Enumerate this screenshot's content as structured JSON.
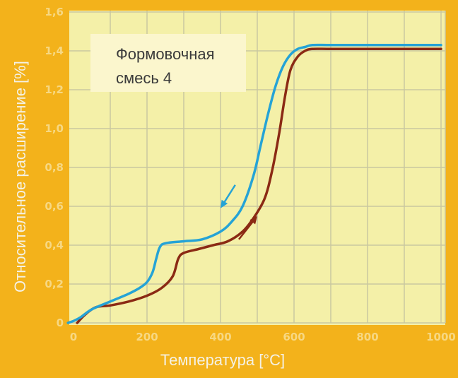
{
  "chart_data": {
    "type": "line",
    "title": "",
    "xlabel": "Температура [°C]",
    "ylabel": "Относительное расширение [%]",
    "xlim": [
      0,
      1000
    ],
    "ylim": [
      0,
      1.6
    ],
    "x_ticks": [
      "0",
      "200",
      "400",
      "600",
      "800",
      "1000"
    ],
    "y_ticks": [
      "0",
      "0,2",
      "0,4",
      "0,6",
      "0,8",
      "1,0",
      "1,2",
      "1,4",
      "1,6"
    ],
    "grid": true,
    "annotation": {
      "line1": "Формовочная",
      "line2": "смесь  4"
    },
    "colors": {
      "plot_background": "#f4f0a8",
      "grid": "#c9c8a0",
      "outer_background": "#f3b21b",
      "annotation_box": "#fbf6cd"
    },
    "series": [
      {
        "color": "#25a3d6",
        "direction": "cooling",
        "x": [
          -15,
          0,
          20,
          50,
          100,
          150,
          180,
          200,
          215,
          225,
          235,
          250,
          300,
          350,
          400,
          430,
          460,
          490,
          510,
          530,
          550,
          570,
          590,
          610,
          630,
          650,
          700,
          800,
          900,
          1000
        ],
        "y": [
          0.0,
          0.01,
          0.03,
          0.07,
          0.11,
          0.15,
          0.18,
          0.21,
          0.26,
          0.33,
          0.39,
          0.41,
          0.42,
          0.43,
          0.47,
          0.52,
          0.6,
          0.76,
          0.92,
          1.08,
          1.22,
          1.32,
          1.38,
          1.41,
          1.42,
          1.43,
          1.43,
          1.43,
          1.43,
          1.43
        ]
      },
      {
        "color": "#8b2a14",
        "direction": "heating",
        "x": [
          10,
          30,
          60,
          100,
          150,
          200,
          240,
          270,
          285,
          300,
          340,
          380,
          420,
          460,
          490,
          520,
          540,
          560,
          575,
          590,
          610,
          630,
          650,
          700,
          800,
          900,
          1000
        ],
        "y": [
          0.0,
          0.04,
          0.08,
          0.09,
          0.11,
          0.14,
          0.18,
          0.24,
          0.33,
          0.36,
          0.38,
          0.4,
          0.42,
          0.47,
          0.54,
          0.64,
          0.78,
          0.98,
          1.16,
          1.3,
          1.37,
          1.4,
          1.41,
          1.41,
          1.41,
          1.41,
          1.41
        ]
      }
    ],
    "arrows": [
      {
        "series": "cooling",
        "from": [
          440,
          0.71
        ],
        "to": [
          400,
          0.59
        ]
      },
      {
        "series": "heating",
        "from": [
          450,
          0.43
        ],
        "to": [
          500,
          0.55
        ]
      }
    ]
  }
}
